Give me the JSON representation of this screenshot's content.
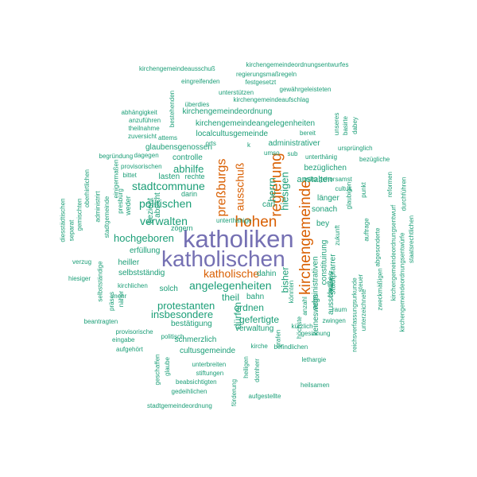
{
  "palette": {
    "teal": "#1b9e77",
    "orange": "#d95f02",
    "purple": "#7570b3"
  },
  "words": [
    {
      "text": "katholiken",
      "color": "purple"
    },
    {
      "text": "katholischen",
      "color": "purple"
    },
    {
      "text": "kirchengemeinde",
      "color": "orange"
    },
    {
      "text": "hohen",
      "color": "orange"
    },
    {
      "text": "regierung",
      "color": "orange"
    },
    {
      "text": "preßburgs",
      "color": "orange"
    },
    {
      "text": "katholische",
      "color": "orange"
    },
    {
      "text": "ausschuß",
      "color": "orange"
    },
    {
      "text": "angelegenheiten",
      "color": "teal"
    },
    {
      "text": "politischen",
      "color": "teal"
    },
    {
      "text": "stadtcommune",
      "color": "teal"
    },
    {
      "text": "verwalten",
      "color": "teal"
    },
    {
      "text": "protestanten",
      "color": "teal"
    },
    {
      "text": "hochgeboren",
      "color": "teal"
    },
    {
      "text": "hiesigen",
      "color": "teal"
    },
    {
      "text": "abhilfe",
      "color": "teal"
    },
    {
      "text": "herrn",
      "color": "teal"
    },
    {
      "text": "insbesondere",
      "color": "teal"
    },
    {
      "text": "gefertigte",
      "color": "teal"
    },
    {
      "text": "ordnen",
      "color": "teal"
    },
    {
      "text": "theil",
      "color": "teal"
    },
    {
      "text": "dürfen",
      "color": "teal"
    },
    {
      "text": "bisher",
      "color": "teal"
    },
    {
      "text": "kirchengemeindeangelegenheiten",
      "color": "teal"
    },
    {
      "text": "localcultusgemeinde",
      "color": "teal"
    },
    {
      "text": "glaubensgenossen",
      "color": "teal"
    },
    {
      "text": "administrativer",
      "color": "teal"
    },
    {
      "text": "kirchengemeindeordnung",
      "color": "teal"
    },
    {
      "text": "bezüglichen",
      "color": "teal"
    },
    {
      "text": "anstalten",
      "color": "teal"
    },
    {
      "text": "controlle",
      "color": "teal"
    },
    {
      "text": "lasten",
      "color": "teal"
    },
    {
      "text": "selbstständig",
      "color": "teal"
    },
    {
      "text": "bestätigung",
      "color": "teal"
    },
    {
      "text": "verwaltung",
      "color": "teal"
    },
    {
      "text": "schmerzlich",
      "color": "teal"
    },
    {
      "text": "cultusgemeinde",
      "color": "teal"
    },
    {
      "text": "administrativen",
      "color": "teal"
    },
    {
      "text": "constituirung",
      "color": "teal"
    },
    {
      "text": "stadtpfarrer",
      "color": "teal"
    },
    {
      "text": "keineswegs",
      "color": "teal"
    },
    {
      "text": "ausschußes",
      "color": "teal"
    },
    {
      "text": "sonach",
      "color": "teal"
    },
    {
      "text": "länger",
      "color": "teal"
    },
    {
      "text": "bey",
      "color": "teal"
    },
    {
      "text": "heiller",
      "color": "teal"
    },
    {
      "text": "erfüllung",
      "color": "teal"
    },
    {
      "text": "solch",
      "color": "teal"
    },
    {
      "text": "bahn",
      "color": "teal"
    },
    {
      "text": "dahin",
      "color": "teal"
    },
    {
      "text": "carl",
      "color": "teal"
    },
    {
      "text": "bezieht",
      "color": "teal"
    },
    {
      "text": "absicht",
      "color": "teal"
    },
    {
      "text": "rechte",
      "color": "teal"
    },
    {
      "text": "zögern",
      "color": "teal"
    },
    {
      "text": "darin",
      "color": "teal"
    },
    {
      "text": "weder",
      "color": "teal"
    },
    {
      "text": "kirchengemeindeausschuß",
      "color": "teal"
    },
    {
      "text": "kirchengemeindeordnungsentwurfes",
      "color": "teal"
    },
    {
      "text": "regierungsmaßregeln",
      "color": "teal"
    },
    {
      "text": "eingreifenden",
      "color": "teal"
    },
    {
      "text": "festgesetzt",
      "color": "teal"
    },
    {
      "text": "gewährgeleisteten",
      "color": "teal"
    },
    {
      "text": "unterstützen",
      "color": "teal"
    },
    {
      "text": "überdies",
      "color": "teal"
    },
    {
      "text": "kirchengemeindeaufschlag",
      "color": "teal"
    },
    {
      "text": "abhängigkeit",
      "color": "teal"
    },
    {
      "text": "anzuführen",
      "color": "teal"
    },
    {
      "text": "theilnahme",
      "color": "teal"
    },
    {
      "text": "zuversicht",
      "color": "teal"
    },
    {
      "text": "attems",
      "color": "teal"
    },
    {
      "text": "bereit",
      "color": "teal"
    },
    {
      "text": "orts",
      "color": "teal"
    },
    {
      "text": "umso",
      "color": "teal"
    },
    {
      "text": "sub",
      "color": "teal"
    },
    {
      "text": "unterthänig",
      "color": "teal"
    },
    {
      "text": "ursprünglich",
      "color": "teal"
    },
    {
      "text": "bezügliche",
      "color": "teal"
    },
    {
      "text": "begründung",
      "color": "teal"
    },
    {
      "text": "dagegen",
      "color": "teal"
    },
    {
      "text": "provisorischen",
      "color": "teal"
    },
    {
      "text": "bittet",
      "color": "teal"
    },
    {
      "text": "märz",
      "color": "teal"
    },
    {
      "text": "gehorsamst",
      "color": "teal"
    },
    {
      "text": "cultus",
      "color": "teal"
    },
    {
      "text": "glaubigen",
      "color": "teal"
    },
    {
      "text": "zukunft",
      "color": "teal"
    },
    {
      "text": "bestehenden",
      "color": "teal"
    },
    {
      "text": "unseres",
      "color": "teal"
    },
    {
      "text": "basirte",
      "color": "teal"
    },
    {
      "text": "dabey",
      "color": "teal"
    },
    {
      "text": "reformen",
      "color": "teal"
    },
    {
      "text": "durchführen",
      "color": "teal"
    },
    {
      "text": "staatsrechtlichen",
      "color": "teal"
    },
    {
      "text": "kirchengemeindeordnungsentwurf",
      "color": "teal"
    },
    {
      "text": "kirchengemeindeordnungsentwürfe",
      "color": "teal"
    },
    {
      "text": "punkt",
      "color": "teal"
    },
    {
      "text": "auftrage",
      "color": "teal"
    },
    {
      "text": "abgesonderte",
      "color": "teal"
    },
    {
      "text": "zweckmäßigen",
      "color": "teal"
    },
    {
      "text": "steuer",
      "color": "teal"
    },
    {
      "text": "fonde",
      "color": "teal"
    },
    {
      "text": "reichsverfassungsurkunde",
      "color": "teal"
    },
    {
      "text": "unterzeichnete",
      "color": "teal"
    },
    {
      "text": "raum",
      "color": "teal"
    },
    {
      "text": "zwingen",
      "color": "teal"
    },
    {
      "text": "gesinnung",
      "color": "teal"
    },
    {
      "text": "kürzlich",
      "color": "teal"
    },
    {
      "text": "befindlichen",
      "color": "teal"
    },
    {
      "text": "lethargie",
      "color": "teal"
    },
    {
      "text": "heilsamen",
      "color": "teal"
    },
    {
      "text": "könnten",
      "color": "teal"
    },
    {
      "text": "anzahl",
      "color": "teal"
    },
    {
      "text": "höchste",
      "color": "teal"
    },
    {
      "text": "grafen",
      "color": "teal"
    },
    {
      "text": "kirche",
      "color": "teal"
    },
    {
      "text": "heiligen",
      "color": "teal"
    },
    {
      "text": "domherr",
      "color": "teal"
    },
    {
      "text": "aufgestellte",
      "color": "teal"
    },
    {
      "text": "förderung",
      "color": "teal"
    },
    {
      "text": "stadtgemeindeordnung",
      "color": "teal"
    },
    {
      "text": "gedeihlichen",
      "color": "teal"
    },
    {
      "text": "beabsichtigten",
      "color": "teal"
    },
    {
      "text": "stiftungen",
      "color": "teal"
    },
    {
      "text": "unterbreiten",
      "color": "teal"
    },
    {
      "text": "glaube",
      "color": "teal"
    },
    {
      "text": "geschaffen",
      "color": "teal"
    },
    {
      "text": "politisch",
      "color": "teal"
    },
    {
      "text": "aufgehört",
      "color": "teal"
    },
    {
      "text": "eingabe",
      "color": "teal"
    },
    {
      "text": "provisorische",
      "color": "teal"
    },
    {
      "text": "beantragten",
      "color": "teal"
    },
    {
      "text": "präses",
      "color": "teal"
    },
    {
      "text": "näher",
      "color": "teal"
    },
    {
      "text": "mehr",
      "color": "teal"
    },
    {
      "text": "kirchlichen",
      "color": "teal"
    },
    {
      "text": "selbstständige",
      "color": "teal"
    },
    {
      "text": "hiesiger",
      "color": "teal"
    },
    {
      "text": "verzug",
      "color": "teal"
    },
    {
      "text": "separat",
      "color": "teal"
    },
    {
      "text": "diesstädtischen",
      "color": "teal"
    },
    {
      "text": "gemischten",
      "color": "teal"
    },
    {
      "text": "oberhirtlichen",
      "color": "teal"
    },
    {
      "text": "administrirt",
      "color": "teal"
    },
    {
      "text": "stadtgemeinde",
      "color": "teal"
    },
    {
      "text": "presburg",
      "color": "teal"
    },
    {
      "text": "einigermaßen",
      "color": "teal"
    },
    {
      "text": "unterthänige",
      "color": "teal"
    },
    {
      "text": "k",
      "color": "teal"
    },
    {
      "text": "bleibt",
      "color": "teal"
    }
  ]
}
